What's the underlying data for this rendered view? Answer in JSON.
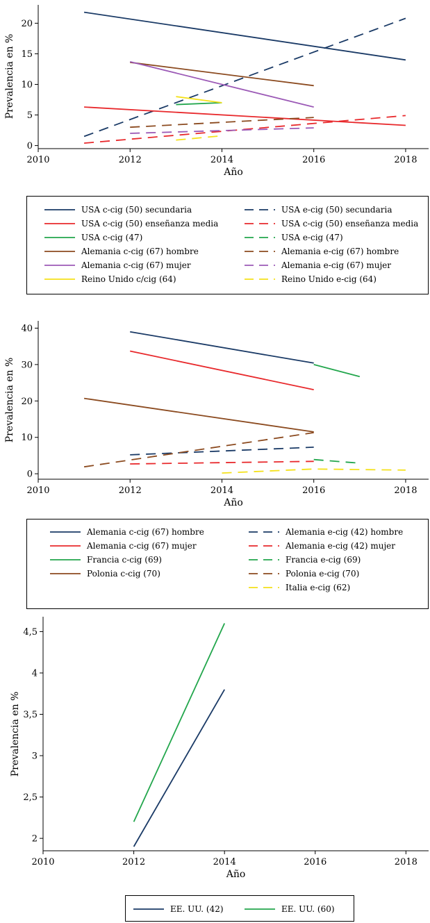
{
  "chart_data": [
    {
      "type": "line",
      "xlabel": "Año",
      "ylabel": "Prevalencia en %",
      "xlim": [
        2010,
        2018.5
      ],
      "ylim": [
        -0.5,
        23
      ],
      "xticks": [
        "2010",
        "2012",
        "2014",
        "2016",
        "2018"
      ],
      "yticks": [
        "0",
        "5",
        "10",
        "15",
        "20"
      ],
      "legend_position": "bottom",
      "series": [
        {
          "name": "USA c-cig (50) secundaria",
          "color": "#1a3a66",
          "dash": "solid",
          "x": [
            2011,
            2018
          ],
          "values": [
            21.8,
            14.0
          ]
        },
        {
          "name": "USA e-cig (50) secundaria",
          "color": "#1a3a66",
          "dash": "dashed",
          "x": [
            2011,
            2018
          ],
          "values": [
            1.5,
            20.8
          ]
        },
        {
          "name": "USA c-cig (50) enseñanza media",
          "color": "#e8292c",
          "dash": "solid",
          "x": [
            2011,
            2018
          ],
          "values": [
            6.3,
            3.3
          ]
        },
        {
          "name": "USA c-cig (50) enseñanza media",
          "color": "#e8292c",
          "dash": "dashed",
          "x": [
            2011,
            2018
          ],
          "values": [
            0.4,
            4.9
          ]
        },
        {
          "name": "USA c-cig (47)",
          "color": "#22a64c",
          "dash": "solid",
          "x": [
            2013,
            2014
          ],
          "values": [
            6.7,
            7.0
          ]
        },
        {
          "name": "USA e-cig (47)",
          "color": "#22a64c",
          "dash": "dashed",
          "x": [],
          "values": []
        },
        {
          "name": "Alemania c-cig (67) hombre",
          "color": "#8b4a1f",
          "dash": "solid",
          "x": [
            2012,
            2016
          ],
          "values": [
            13.6,
            9.8
          ]
        },
        {
          "name": "Alemania e-cig (67) hombre",
          "color": "#8b4a1f",
          "dash": "dashed",
          "x": [
            2012,
            2016
          ],
          "values": [
            3.0,
            4.6
          ]
        },
        {
          "name": "Alemania c-cig (67) mujer",
          "color": "#9b59b6",
          "dash": "solid",
          "x": [
            2012,
            2016
          ],
          "values": [
            13.7,
            6.3
          ]
        },
        {
          "name": "Alemania e-cig (67) mujer",
          "color": "#9b59b6",
          "dash": "dashed",
          "x": [
            2012,
            2016
          ],
          "values": [
            2.0,
            2.9
          ]
        },
        {
          "name": "Reino Unido c/cig (64)",
          "color": "#f4e11a",
          "dash": "solid",
          "x": [
            2013,
            2014
          ],
          "values": [
            8.0,
            7.0
          ]
        },
        {
          "name": "Reino Unido e-cig (64)",
          "color": "#f4e11a",
          "dash": "dashed",
          "x": [
            2013,
            2014
          ],
          "values": [
            0.9,
            1.6
          ]
        }
      ]
    },
    {
      "type": "line",
      "xlabel": "Año",
      "ylabel": "Prevalencia en %",
      "xlim": [
        2010,
        2018.5
      ],
      "ylim": [
        -1.5,
        42
      ],
      "xticks": [
        "2010",
        "2012",
        "2014",
        "2016",
        "2018"
      ],
      "yticks": [
        "0",
        "10",
        "20",
        "30",
        "40"
      ],
      "legend_position": "bottom",
      "series": [
        {
          "name": "Alemania c-cig (67) hombre",
          "color": "#1a3a66",
          "dash": "solid",
          "x": [
            2012,
            2016
          ],
          "values": [
            39.0,
            30.4
          ]
        },
        {
          "name": "Alemania e-cig (42) hombre",
          "color": "#1a3a66",
          "dash": "dashed",
          "x": [
            2012,
            2016
          ],
          "values": [
            5.2,
            7.3
          ]
        },
        {
          "name": "Alemania c-cig (67) mujer",
          "color": "#e8292c",
          "dash": "solid",
          "x": [
            2012,
            2016
          ],
          "values": [
            33.7,
            23.1
          ]
        },
        {
          "name": "Alemania e-cig (42) mujer",
          "color": "#e8292c",
          "dash": "dashed",
          "x": [
            2012,
            2016
          ],
          "values": [
            2.7,
            3.4
          ]
        },
        {
          "name": "Francia c-cig (69)",
          "color": "#22a64c",
          "dash": "solid",
          "x": [
            2016,
            2017
          ],
          "values": [
            30.0,
            26.7
          ]
        },
        {
          "name": "Francia e-cig (69)",
          "color": "#22a64c",
          "dash": "dashed",
          "x": [
            2016,
            2017
          ],
          "values": [
            3.9,
            2.9
          ]
        },
        {
          "name": "Polonia c-cig (70)",
          "color": "#8b4a1f",
          "dash": "solid",
          "x": [
            2011,
            2016
          ],
          "values": [
            20.7,
            11.5
          ]
        },
        {
          "name": "Polonia e-cig (70)",
          "color": "#8b4a1f",
          "dash": "dashed",
          "x": [
            2011,
            2016
          ],
          "values": [
            1.9,
            11.3
          ]
        },
        {
          "name": "Italia e-cig (62)",
          "color": "#f4e11a",
          "dash": "dashed",
          "x": [
            2014,
            2016,
            2018
          ],
          "values": [
            0.2,
            1.3,
            1.0
          ]
        }
      ]
    },
    {
      "type": "line",
      "xlabel": "Año",
      "ylabel": "Prevalencia en %",
      "xlim": [
        2010,
        2018.5
      ],
      "ylim": [
        1.85,
        4.68
      ],
      "xticks": [
        "2010",
        "2012",
        "2014",
        "2016",
        "2018"
      ],
      "yticks": [
        "2",
        "2,5",
        "3",
        "3,5",
        "4",
        "4,5"
      ],
      "legend_position": "bottom",
      "series": [
        {
          "name": "EE. UU. (42)",
          "color": "#1a3a66",
          "dash": "solid",
          "x": [
            2012,
            2014
          ],
          "values": [
            1.9,
            3.8
          ]
        },
        {
          "name": "EE. UU. (60)",
          "color": "#22a64c",
          "dash": "solid",
          "x": [
            2012,
            2014
          ],
          "values": [
            2.2,
            4.6
          ]
        }
      ]
    }
  ]
}
